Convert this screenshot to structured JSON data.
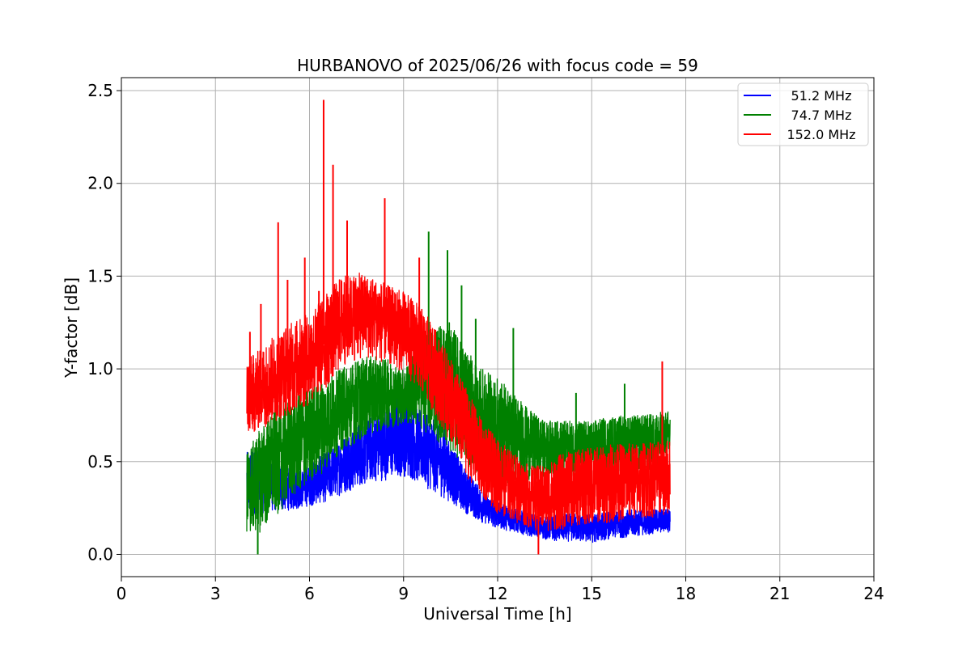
{
  "chart_data": {
    "type": "line",
    "title": "HURBANOVO of 2025/06/26 with focus code = 59",
    "xlabel": "Universal Time [h]",
    "ylabel": "Y-factor [dB]",
    "xlim": [
      0,
      24
    ],
    "ylim": [
      -0.12,
      2.57
    ],
    "xticks": [
      0,
      3,
      6,
      9,
      12,
      15,
      18,
      21,
      24
    ],
    "yticks": [
      0.0,
      0.5,
      1.0,
      1.5,
      2.0,
      2.5
    ],
    "ytick_labels": [
      "0.0",
      "0.5",
      "1.0",
      "1.5",
      "2.0",
      "2.5"
    ],
    "grid": true,
    "legend_position": "top-right",
    "series": [
      {
        "name": "51.2 MHz",
        "color": "#0000ff",
        "x": [
          4.0,
          4.5,
          5.0,
          5.5,
          6.0,
          6.5,
          7.0,
          7.5,
          8.0,
          8.5,
          9.0,
          9.5,
          10.0,
          10.5,
          11.0,
          11.5,
          12.0,
          12.5,
          13.0,
          13.5,
          14.0,
          14.5,
          15.0,
          15.5,
          16.0,
          16.5,
          17.0,
          17.5
        ],
        "low": [
          0.2,
          0.22,
          0.23,
          0.24,
          0.26,
          0.28,
          0.32,
          0.36,
          0.39,
          0.4,
          0.42,
          0.38,
          0.33,
          0.28,
          0.22,
          0.17,
          0.14,
          0.12,
          0.1,
          0.08,
          0.07,
          0.07,
          0.06,
          0.08,
          0.09,
          0.1,
          0.11,
          0.12
        ],
        "high": [
          0.55,
          0.58,
          0.5,
          0.45,
          0.48,
          0.55,
          0.62,
          0.7,
          0.75,
          0.8,
          0.83,
          0.78,
          0.72,
          0.6,
          0.45,
          0.35,
          0.28,
          0.25,
          0.22,
          0.2,
          0.22,
          0.22,
          0.22,
          0.23,
          0.24,
          0.24,
          0.24,
          0.25
        ],
        "spikes": [
          [
            8.8,
            0.85
          ],
          [
            9.1,
            0.83
          ],
          [
            10.3,
            0.72
          ]
        ]
      },
      {
        "name": "74.7 MHz",
        "color": "#008000",
        "x": [
          4.0,
          4.5,
          5.0,
          5.5,
          6.0,
          6.5,
          7.0,
          7.5,
          8.0,
          8.5,
          9.0,
          9.5,
          10.0,
          10.5,
          11.0,
          11.5,
          12.0,
          12.5,
          13.0,
          13.5,
          14.0,
          14.5,
          15.0,
          15.5,
          16.0,
          16.5,
          17.0,
          17.5
        ],
        "low": [
          0.1,
          0.12,
          0.22,
          0.3,
          0.38,
          0.45,
          0.55,
          0.6,
          0.65,
          0.68,
          0.7,
          0.68,
          0.62,
          0.55,
          0.48,
          0.4,
          0.38,
          0.38,
          0.4,
          0.42,
          0.42,
          0.42,
          0.43,
          0.44,
          0.45,
          0.45,
          0.45,
          0.46
        ],
        "high": [
          0.55,
          0.7,
          0.8,
          0.85,
          0.9,
          0.95,
          1.0,
          1.05,
          1.07,
          1.05,
          1.0,
          1.15,
          1.25,
          1.25,
          1.1,
          1.0,
          0.95,
          0.88,
          0.78,
          0.72,
          0.72,
          0.72,
          0.72,
          0.74,
          0.75,
          0.75,
          0.76,
          0.78
        ],
        "spikes": [
          [
            4.35,
            0.0
          ],
          [
            9.8,
            1.74
          ],
          [
            10.4,
            1.64
          ],
          [
            10.85,
            1.45
          ],
          [
            11.3,
            1.27
          ],
          [
            12.5,
            1.22
          ],
          [
            14.5,
            0.87
          ],
          [
            16.05,
            0.92
          ]
        ]
      },
      {
        "name": "152.0 MHz",
        "color": "#ff0000",
        "x": [
          4.0,
          4.5,
          5.0,
          5.5,
          6.0,
          6.5,
          7.0,
          7.5,
          8.0,
          8.5,
          9.0,
          9.5,
          10.0,
          10.5,
          11.0,
          11.5,
          12.0,
          12.5,
          13.0,
          13.5,
          14.0,
          14.5,
          15.0,
          15.5,
          16.0,
          16.5,
          17.0,
          17.5
        ],
        "low": [
          0.62,
          0.68,
          0.72,
          0.76,
          0.8,
          0.88,
          1.0,
          1.05,
          1.05,
          1.02,
          0.98,
          0.88,
          0.75,
          0.6,
          0.42,
          0.3,
          0.22,
          0.18,
          0.14,
          0.12,
          0.13,
          0.15,
          0.16,
          0.17,
          0.18,
          0.19,
          0.2,
          0.21
        ],
        "high": [
          1.05,
          1.12,
          1.2,
          1.26,
          1.3,
          1.4,
          1.5,
          1.52,
          1.5,
          1.45,
          1.42,
          1.35,
          1.22,
          1.05,
          0.9,
          0.72,
          0.62,
          0.55,
          0.48,
          0.48,
          0.54,
          0.56,
          0.58,
          0.59,
          0.6,
          0.6,
          0.61,
          0.62
        ],
        "spikes": [
          [
            4.1,
            1.2
          ],
          [
            4.45,
            1.35
          ],
          [
            5.0,
            1.79
          ],
          [
            5.3,
            1.48
          ],
          [
            5.85,
            1.6
          ],
          [
            6.3,
            1.42
          ],
          [
            6.45,
            2.45
          ],
          [
            6.75,
            2.1
          ],
          [
            7.2,
            1.8
          ],
          [
            8.4,
            1.92
          ],
          [
            9.5,
            1.6
          ],
          [
            13.3,
            0.0
          ],
          [
            17.25,
            1.04
          ]
        ]
      }
    ]
  }
}
